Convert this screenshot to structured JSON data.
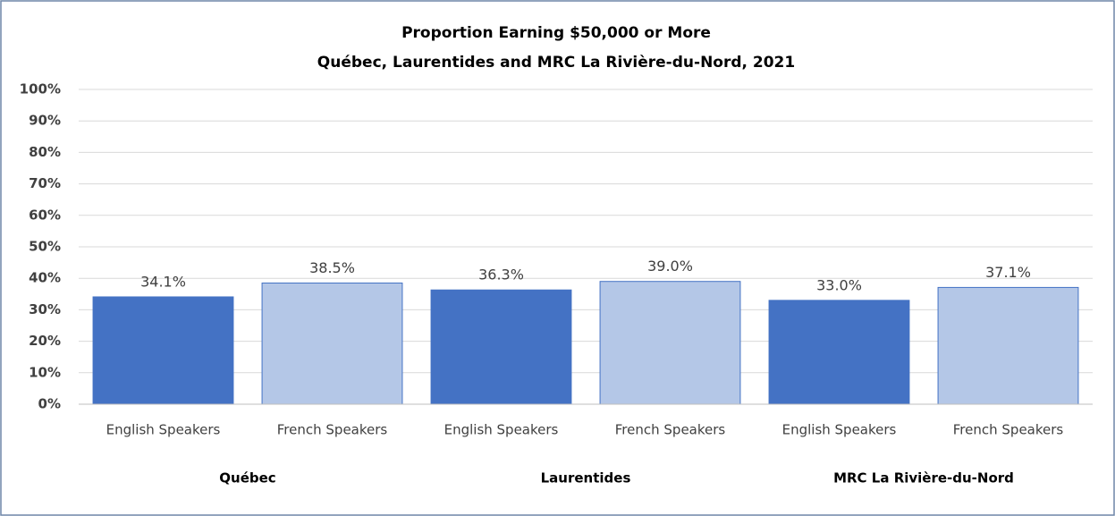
{
  "chart_data": {
    "type": "bar",
    "title": "Proportion Earning $50,000 or More",
    "subtitle": "Québec, Laurentides and MRC La Rivière-du-Nord, 2021",
    "colors": [
      "#4472c4",
      "#b4c7e7"
    ],
    "groups": [
      {
        "label": "Québec",
        "categories": [
          "English Speakers",
          "French Speakers"
        ],
        "values": [
          34.1,
          38.5
        ],
        "value_labels": [
          "34.1%",
          "38.5%"
        ]
      },
      {
        "label": "Laurentides",
        "categories": [
          "English Speakers",
          "French Speakers"
        ],
        "values": [
          36.3,
          39.0
        ],
        "value_labels": [
          "36.3%",
          "39.0%"
        ]
      },
      {
        "label": "MRC La Rivière-du-Nord",
        "categories": [
          "English Speakers",
          "French Speakers"
        ],
        "values": [
          33.0,
          37.1
        ],
        "value_labels": [
          "33.0%",
          "37.1%"
        ]
      }
    ],
    "ylim": [
      0,
      100
    ],
    "yticks": [
      {
        "value": 0,
        "label": "0%"
      },
      {
        "value": 10,
        "label": "10%"
      },
      {
        "value": 20,
        "label": "20%"
      },
      {
        "value": 30,
        "label": "30%"
      },
      {
        "value": 40,
        "label": "40%"
      },
      {
        "value": 50,
        "label": "50%"
      },
      {
        "value": 60,
        "label": "60%"
      },
      {
        "value": 70,
        "label": "70%"
      },
      {
        "value": 80,
        "label": "80%"
      },
      {
        "value": 90,
        "label": "90%"
      },
      {
        "value": 100,
        "label": "100%"
      }
    ],
    "grid": true
  }
}
